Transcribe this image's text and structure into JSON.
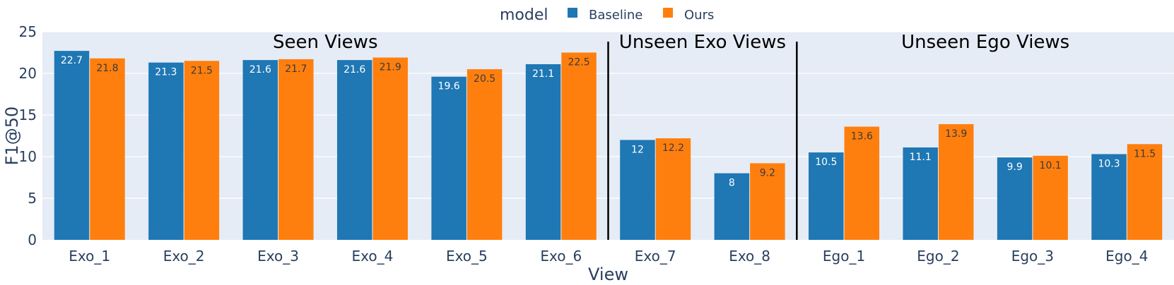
{
  "chart_data": {
    "type": "bar",
    "xlabel": "View",
    "ylabel": "F1@50",
    "ylim": [
      0,
      25
    ],
    "yticks": [
      0,
      5,
      10,
      15,
      20,
      25
    ],
    "grid": true,
    "legend": {
      "title": "model",
      "placement": "top-center"
    },
    "categories": [
      "Exo_1",
      "Exo_2",
      "Exo_3",
      "Exo_4",
      "Exo_5",
      "Exo_6",
      "Exo_7",
      "Exo_8",
      "Ego_1",
      "Ego_2",
      "Ego_3",
      "Ego_4"
    ],
    "series": [
      {
        "name": "Baseline",
        "color": "#1f77b4",
        "label_color": "#ffffff",
        "values": [
          22.7,
          21.3,
          21.6,
          21.6,
          19.6,
          21.1,
          12,
          8,
          10.5,
          11.1,
          9.9,
          10.3
        ]
      },
      {
        "name": "Ours",
        "color": "#ff7f0e",
        "label_color": "#3a3a3a",
        "values": [
          21.8,
          21.5,
          21.7,
          21.9,
          20.5,
          22.5,
          12.2,
          9.2,
          13.6,
          13.9,
          10.1,
          11.5
        ]
      }
    ],
    "groups": [
      {
        "label": "Seen Views",
        "start": 0,
        "end": 5
      },
      {
        "label": "Unseen Exo Views",
        "start": 6,
        "end": 7
      },
      {
        "label": "Unseen Ego Views",
        "start": 8,
        "end": 11
      }
    ],
    "background_color": "#e5ecf6",
    "divider_color": "#000000"
  }
}
